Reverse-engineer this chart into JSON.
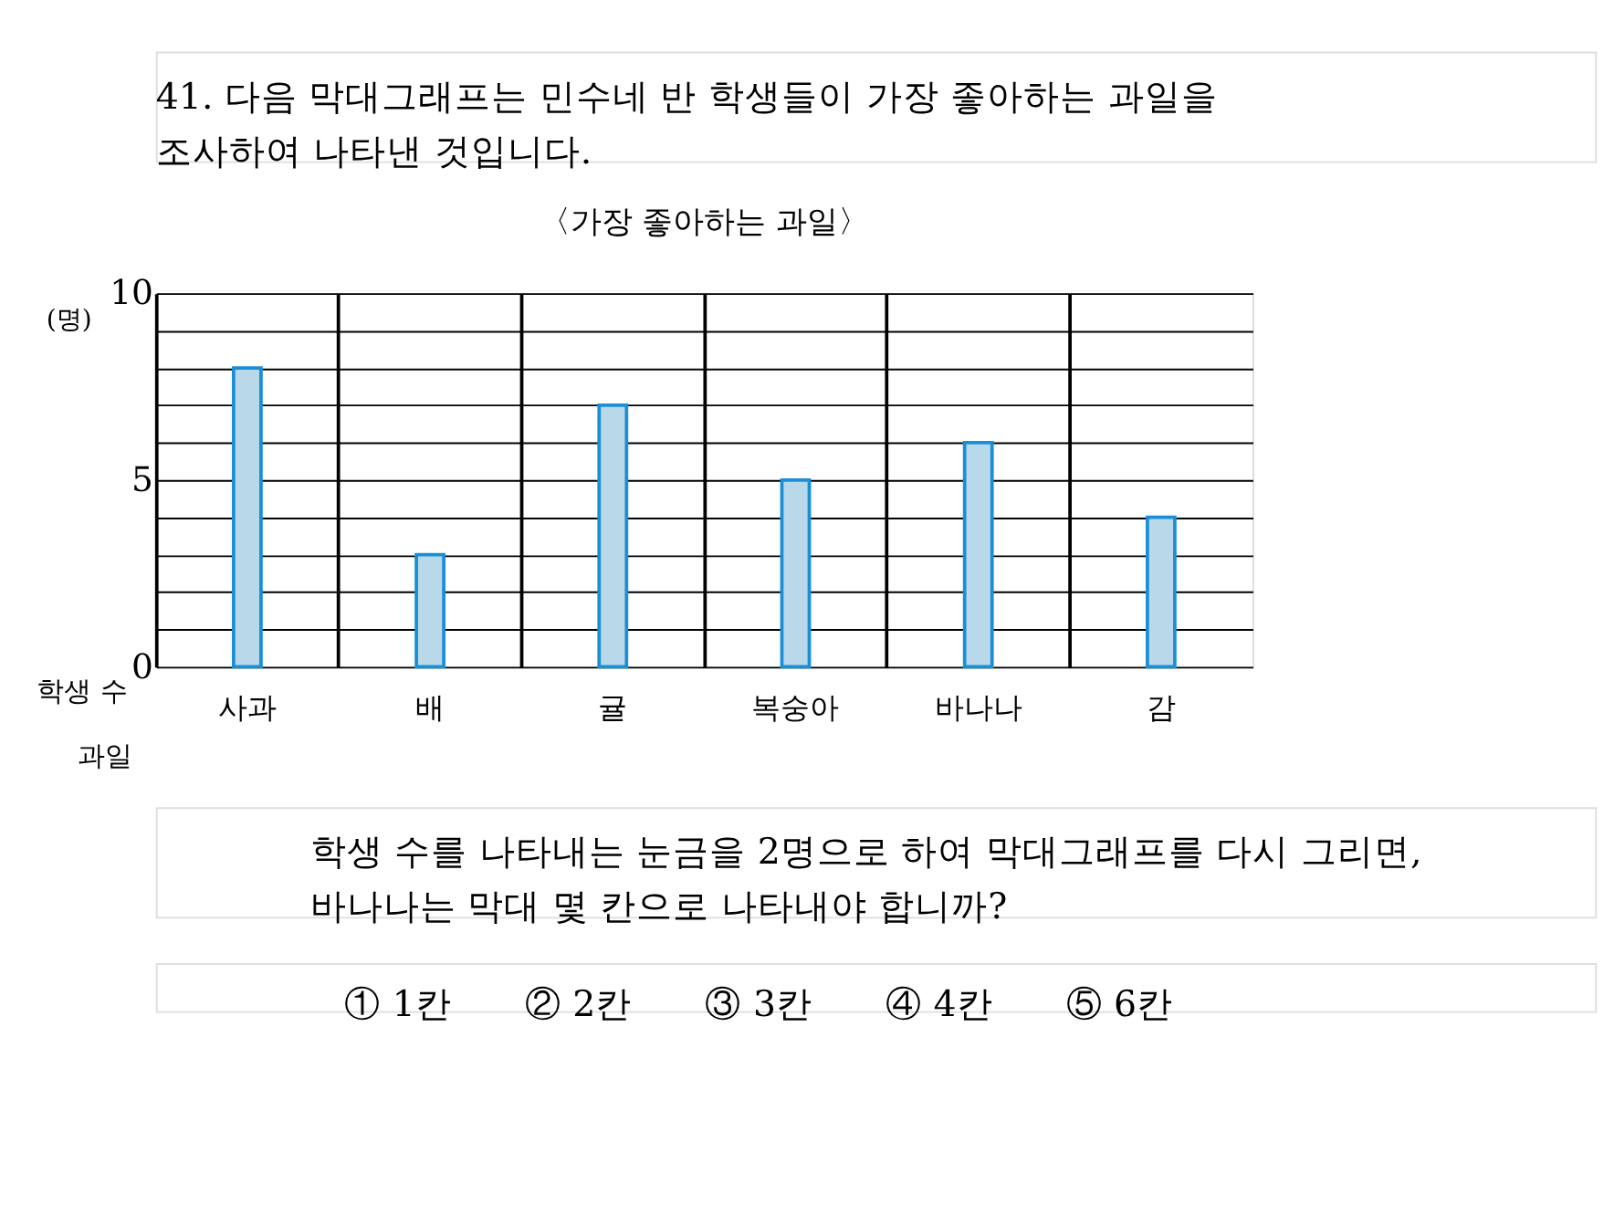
{
  "chart_data": {
    "type": "bar",
    "title": "〈가장 좋아하는 과일〉",
    "xlabel": "과일",
    "ylabel": "학생 수",
    "categories": [
      "사과",
      "배",
      "귤",
      "복숭아",
      "바나나",
      "감"
    ],
    "values": [
      8,
      3,
      7,
      5,
      6,
      4
    ],
    "color": "#b9d9ea",
    "ylim": [
      0,
      10
    ],
    "yticks": [
      0,
      {
        "value": 1,
        "label": null
      },
      {
        "value": 2,
        "label": null
      },
      {
        "value": 3,
        "label": null
      },
      {
        "value": 4,
        "label": null
      },
      5,
      {
        "value": 6,
        "label": null
      },
      {
        "value": 7,
        "label": null
      },
      {
        "value": 8,
        "label": null
      },
      {
        "value": 9,
        "label": null
      },
      10
    ],
    "grid": true,
    "legend": false,
    "annotations": [
      "41. 다음 막대그래프는 민수네 반 학생들이 가장 좋아하는 과일을 조사하여 나타낸 것입니다.",
      "학생 수를 나타내는 눈금을 2명으로 하여 막대그래프를 다시 그리면, 바나나는 막대 몇 칸으로 나타내야 합니까?",
      "① 1칸　　② 2칸　　③ 3칸　　④ 4칸　　⑤ 6칸",
      "(명)"
    ]
  }
}
